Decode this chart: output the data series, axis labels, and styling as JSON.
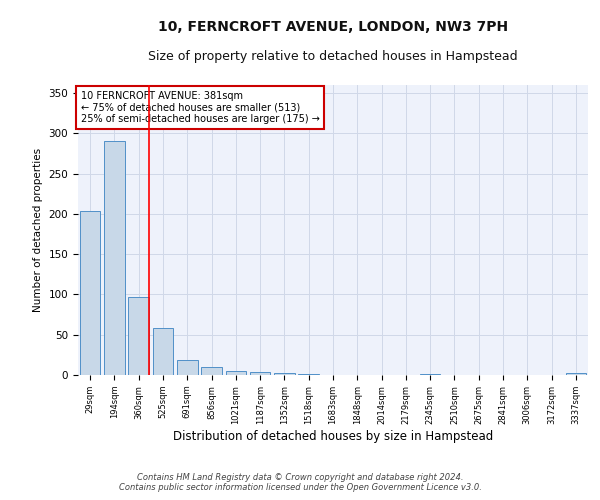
{
  "title": "10, FERNCROFT AVENUE, LONDON, NW3 7PH",
  "subtitle": "Size of property relative to detached houses in Hampstead",
  "xlabel": "Distribution of detached houses by size in Hampstead",
  "ylabel": "Number of detached properties",
  "categories": [
    "29sqm",
    "194sqm",
    "360sqm",
    "525sqm",
    "691sqm",
    "856sqm",
    "1021sqm",
    "1187sqm",
    "1352sqm",
    "1518sqm",
    "1683sqm",
    "1848sqm",
    "2014sqm",
    "2179sqm",
    "2345sqm",
    "2510sqm",
    "2675sqm",
    "2841sqm",
    "3006sqm",
    "3172sqm",
    "3337sqm"
  ],
  "values": [
    204,
    290,
    97,
    58,
    19,
    10,
    5,
    4,
    2,
    1,
    0,
    0,
    0,
    0,
    1,
    0,
    0,
    0,
    0,
    0,
    2
  ],
  "bar_color": "#c8d8e8",
  "bar_edge_color": "#5090c8",
  "grid_color": "#d0d8e8",
  "bg_color": "#eef2fb",
  "red_line_x": 2,
  "annotation_text": "10 FERNCROFT AVENUE: 381sqm\n← 75% of detached houses are smaller (513)\n25% of semi-detached houses are larger (175) →",
  "annotation_box_color": "#ffffff",
  "annotation_box_edge": "#cc0000",
  "ylim": [
    0,
    360
  ],
  "yticks": [
    0,
    50,
    100,
    150,
    200,
    250,
    300,
    350
  ],
  "footer": "Contains HM Land Registry data © Crown copyright and database right 2024.\nContains public sector information licensed under the Open Government Licence v3.0.",
  "title_fontsize": 10,
  "subtitle_fontsize": 9
}
